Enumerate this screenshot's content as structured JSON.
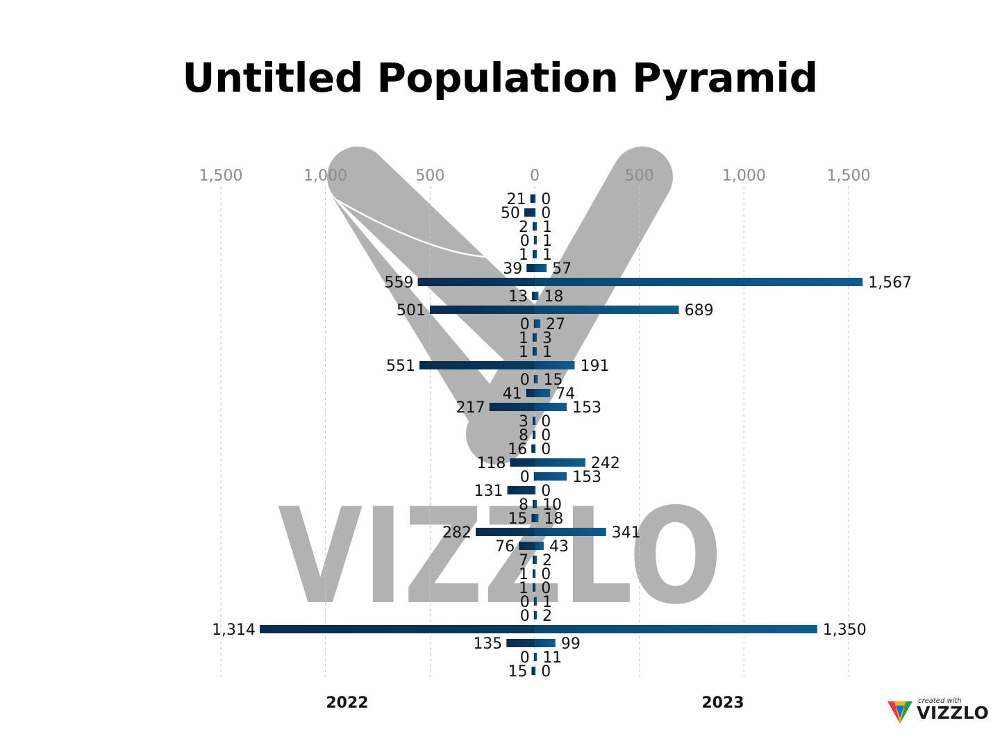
{
  "title": "Untitled Population Pyramid",
  "watermark": {
    "text": "VIZZLO"
  },
  "branding": {
    "small_text": "created with",
    "big_text": "VIZZLO"
  },
  "chart_data": {
    "type": "bar",
    "orientation": "horizontal-pyramid",
    "title": "Untitled Population Pyramid",
    "xlim": [
      0,
      1500
    ],
    "ticks": [
      {
        "value": 1500,
        "label": "1,500"
      },
      {
        "value": 1000,
        "label": "1,000"
      },
      {
        "value": 500,
        "label": "500"
      },
      {
        "value": 0,
        "label": "0"
      },
      {
        "value": 500,
        "label": "500"
      },
      {
        "value": 1000,
        "label": "1,000"
      },
      {
        "value": 1500,
        "label": "1,500"
      }
    ],
    "grid": true,
    "series": [
      {
        "name": "2022",
        "side": "left",
        "color": "#0d2b4f",
        "values": [
          21,
          50,
          2,
          0,
          1,
          39,
          559,
          13,
          501,
          0,
          1,
          1,
          551,
          0,
          41,
          217,
          3,
          8,
          16,
          118,
          0,
          131,
          8,
          15,
          282,
          76,
          7,
          1,
          1,
          0,
          0,
          1314,
          135,
          0,
          15
        ],
        "labels": [
          "21",
          "50",
          "2",
          "0",
          "1",
          "39",
          "559",
          "13",
          "501",
          "0",
          "1",
          "1",
          "551",
          "0",
          "41",
          "217",
          "3",
          "8",
          "16",
          "118",
          "0",
          "131",
          "8",
          "15",
          "282",
          "76",
          "7",
          "1",
          "1",
          "0",
          "0",
          "1,314",
          "135",
          "0",
          "15"
        ]
      },
      {
        "name": "2023",
        "side": "right",
        "color": "#0e5a8a",
        "values": [
          0,
          0,
          1,
          1,
          1,
          57,
          1567,
          18,
          689,
          27,
          3,
          1,
          191,
          15,
          74,
          153,
          0,
          0,
          0,
          242,
          153,
          0,
          10,
          18,
          341,
          43,
          2,
          0,
          0,
          1,
          2,
          1350,
          99,
          11,
          0
        ],
        "labels": [
          "0",
          "0",
          "1",
          "1",
          "1",
          "57",
          "1,567",
          "18",
          "689",
          "27",
          "3",
          "1",
          "191",
          "15",
          "74",
          "153",
          "0",
          "0",
          "0",
          "242",
          "153",
          "0",
          "10",
          "18",
          "341",
          "43",
          "2",
          "0",
          "0",
          "1",
          "2",
          "1,350",
          "99",
          "11",
          "0"
        ]
      }
    ]
  }
}
